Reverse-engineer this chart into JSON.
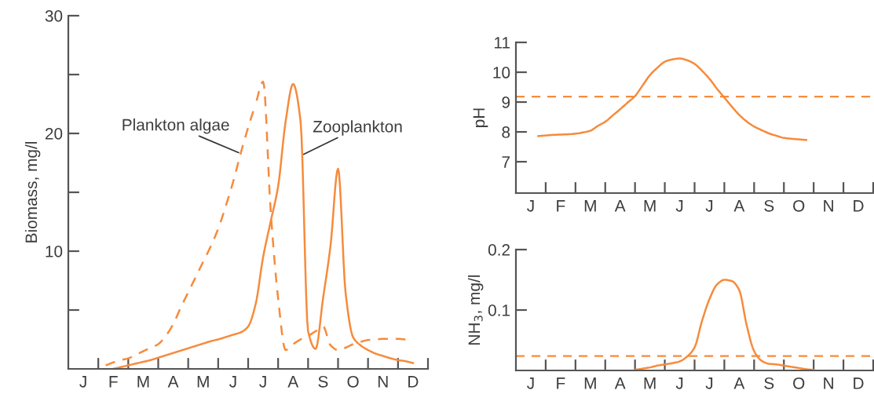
{
  "chart_data": [
    {
      "type": "line",
      "ylabel": "Biomass, mg/l",
      "ylim": [
        0,
        30
      ],
      "categories": [
        null,
        null,
        "J",
        null,
        null,
        null,
        "F",
        null,
        null,
        null,
        "M",
        null,
        null,
        null,
        "A",
        null,
        null,
        null,
        "M",
        null,
        null,
        null,
        "J",
        null,
        null,
        null,
        "J",
        null,
        null,
        null,
        "A",
        null,
        null,
        null,
        "S",
        null,
        null,
        null,
        "O",
        null,
        null,
        null,
        "N",
        null,
        null,
        null,
        "D",
        null,
        null
      ],
      "yticks": [
        {
          "value": 5,
          "label": null
        },
        10,
        {
          "value": 15,
          "label": null
        },
        20,
        {
          "value": 25,
          "label": null
        },
        30
      ],
      "series": [
        {
          "color": "#f68b3c",
          "line_style": "dashed",
          "values": [
            null,
            null,
            null,
            null,
            null,
            0.3,
            0.55,
            0.75,
            0.9,
            1.2,
            1.5,
            1.8,
            2.1,
            2.8,
            3.8,
            5.2,
            6.5,
            7.8,
            9.1,
            10.4,
            11.9,
            13.8,
            15.9,
            18.3,
            20.5,
            22.5,
            24.4,
            13.5,
            6,
            1.6,
            2.1,
            2.5,
            2.8,
            3.2,
            3.6,
            2.0,
            1.6,
            1.8,
            2.1,
            2.3,
            2.45,
            2.5,
            2.55,
            2.55,
            2.55,
            2.5,
            null,
            null,
            null
          ]
        },
        {
          "color": "#f68b3c",
          "line_style": "solid",
          "values": [
            null,
            null,
            null,
            null,
            null,
            null,
            0,
            0.15,
            0.3,
            0.45,
            0.6,
            0.75,
            0.95,
            1.15,
            1.35,
            1.55,
            1.75,
            1.95,
            2.15,
            2.35,
            2.5,
            2.7,
            2.9,
            3.1,
            3.6,
            5.5,
            9.5,
            12.5,
            15.5,
            21,
            24.2,
            21,
            3.2,
            1.7,
            6,
            10.5,
            17,
            6.5,
            2.7,
            2,
            1.6,
            1.3,
            1.1,
            0.9,
            0.75,
            0.65,
            0.5,
            null,
            null
          ]
        }
      ],
      "annotations": [
        "Plankton algae",
        "Zooplankton"
      ]
    },
    {
      "type": "line",
      "ylabel": "pH",
      "ylim": [
        5.95,
        11
      ],
      "categories": [
        null,
        null,
        "J",
        null,
        null,
        null,
        "F",
        null,
        null,
        null,
        "M",
        null,
        null,
        null,
        "A",
        null,
        null,
        null,
        "M",
        null,
        null,
        null,
        "J",
        null,
        null,
        null,
        "J",
        null,
        null,
        null,
        "A",
        null,
        null,
        null,
        "S",
        null,
        null,
        null,
        "O",
        null,
        null,
        null,
        "N",
        null,
        null,
        null,
        "D",
        null,
        null
      ],
      "yticks": [
        7,
        8,
        9,
        10,
        11
      ],
      "series": [
        {
          "color": "#f68b3c",
          "line_style": "solid",
          "values": [
            null,
            null,
            null,
            7.86,
            7.88,
            7.9,
            7.91,
            7.92,
            7.94,
            7.98,
            8.04,
            8.2,
            8.34,
            8.55,
            8.76,
            8.98,
            9.2,
            9.55,
            9.9,
            10.15,
            10.35,
            10.43,
            10.46,
            10.4,
            10.28,
            10.05,
            9.78,
            9.45,
            9.15,
            8.85,
            8.57,
            8.35,
            8.18,
            8.06,
            7.95,
            7.87,
            7.8,
            7.77,
            7.75,
            7.73,
            null,
            null,
            null,
            null,
            null,
            null,
            null,
            null,
            null
          ]
        }
      ],
      "ref_lines": [
        {
          "axis": "y",
          "value": 9.18,
          "color": "#f68b3c",
          "line_style": "dashed"
        }
      ]
    },
    {
      "type": "line",
      "ylabel": "NH$_{3}$, mg/l",
      "ylim": [
        0,
        0.2
      ],
      "categories": [
        null,
        null,
        "J",
        null,
        null,
        null,
        "F",
        null,
        null,
        null,
        "M",
        null,
        null,
        null,
        "A",
        null,
        null,
        null,
        "M",
        null,
        null,
        null,
        "J",
        null,
        null,
        null,
        "J",
        null,
        null,
        null,
        "A",
        null,
        null,
        null,
        "S",
        null,
        null,
        null,
        "O",
        null,
        null,
        null,
        "N",
        null,
        null,
        null,
        "D",
        null,
        null
      ],
      "yticks": [
        0.1,
        0.2
      ],
      "series": [
        {
          "color": "#f68b3c",
          "line_style": "solid",
          "values": [
            null,
            null,
            null,
            null,
            null,
            null,
            null,
            null,
            null,
            null,
            null,
            null,
            null,
            null,
            null,
            null,
            0.001,
            0.003,
            0.005,
            0.008,
            0.01,
            0.012,
            0.015,
            0.023,
            0.038,
            0.082,
            0.118,
            0.142,
            0.15,
            0.148,
            0.133,
            0.075,
            0.032,
            0.016,
            0.011,
            0.01,
            0.008,
            0.006,
            0.004,
            0.002,
            0.001,
            null,
            null,
            null,
            null,
            null,
            null,
            null,
            null
          ]
        }
      ],
      "ref_lines": [
        {
          "axis": "y",
          "value": 0.024,
          "color": "#f68b3c",
          "line_style": "dashed"
        }
      ]
    }
  ]
}
